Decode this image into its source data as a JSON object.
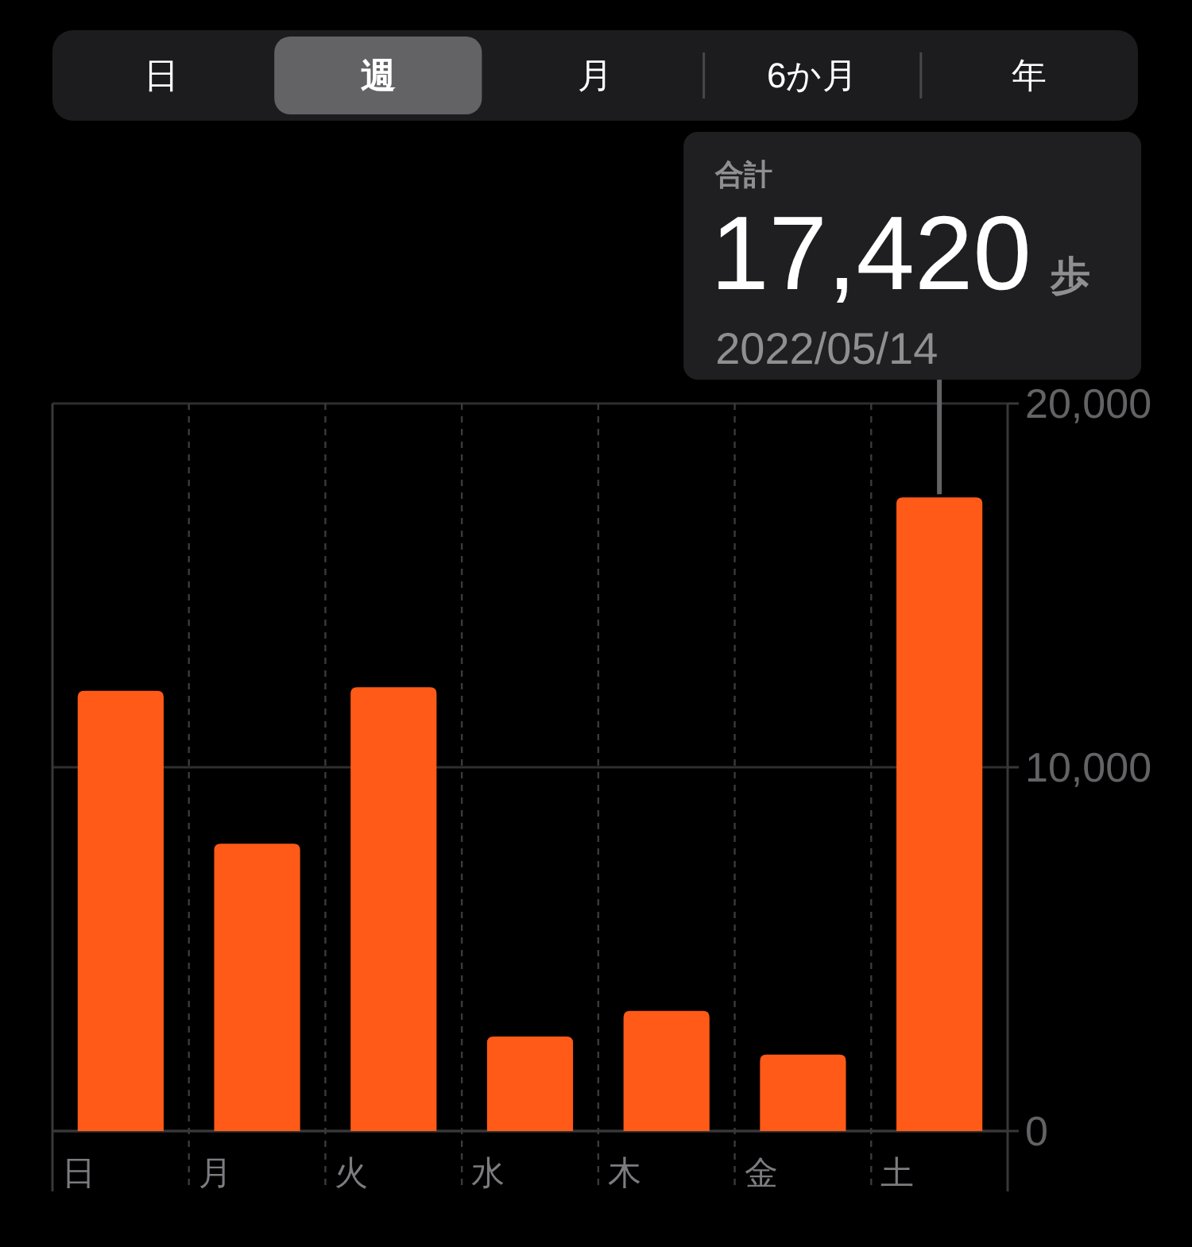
{
  "chart_data": {
    "type": "bar",
    "categories": [
      "日",
      "月",
      "火",
      "水",
      "木",
      "金",
      "土"
    ],
    "values": [
      12100,
      7900,
      12200,
      2600,
      3300,
      2100,
      17420
    ],
    "color": "#ff5a17",
    "ylim": [
      0,
      20000
    ],
    "yticks": [
      0,
      {
        "value": 10000,
        "label": "10,000"
      },
      {
        "value": 20000,
        "label": "20,000"
      }
    ],
    "grid": true,
    "annotations": [
      "日",
      "週",
      "月",
      "6か月",
      "年",
      "合計",
      {
        "text": "17,420 歩",
        "x": "土",
        "y": 17420
      },
      {
        "text": "2022/05/14",
        "x": "土",
        "y": 17420
      }
    ]
  }
}
